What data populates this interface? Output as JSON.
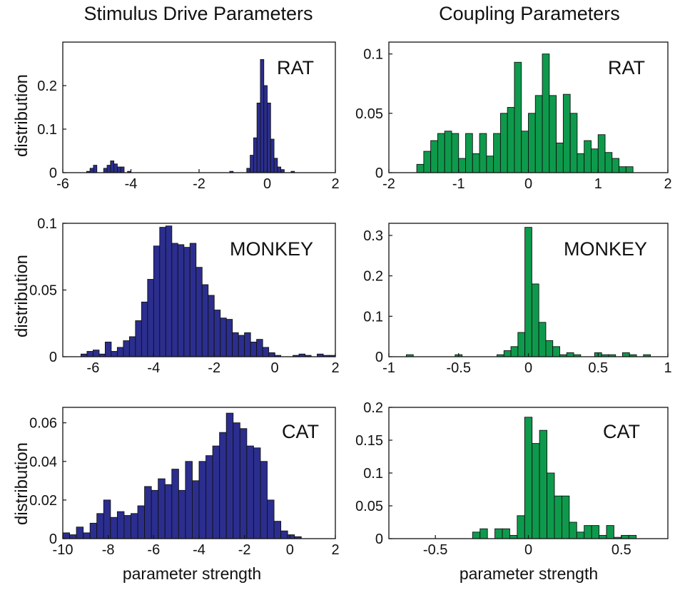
{
  "figure": {
    "column_titles": [
      "Stimulus Drive Parameters",
      "Coupling Parameters"
    ],
    "ylabel": "distribution",
    "xlabel": "parameter strength"
  },
  "colors": {
    "stimulus": "#2b2e8e",
    "coupling": "#0e9a4c"
  },
  "chart_data": [
    {
      "type": "bar",
      "name": "stimulus-rat",
      "label": "RAT",
      "color_key": "stimulus",
      "xlim": [
        -6,
        2
      ],
      "ylim": [
        0,
        0.3
      ],
      "xticks": [
        -6,
        -4,
        -2,
        0,
        2
      ],
      "xtick_labels": [
        "-6",
        "-4",
        "-2",
        "0",
        "2"
      ],
      "yticks": [
        0,
        0.1,
        0.2
      ],
      "ytick_labels": [
        "0",
        "0.1",
        "0.2"
      ],
      "bins": [
        [
          -5.3,
          -5.2,
          0.003
        ],
        [
          -5.2,
          -5.1,
          0.01
        ],
        [
          -5.1,
          -5.0,
          0.017
        ],
        [
          -4.8,
          -4.7,
          0.01
        ],
        [
          -4.7,
          -4.6,
          0.017
        ],
        [
          -4.6,
          -4.5,
          0.027
        ],
        [
          -4.5,
          -4.4,
          0.02
        ],
        [
          -4.4,
          -4.3,
          0.013
        ],
        [
          -4.3,
          -4.2,
          0.013
        ],
        [
          -4.1,
          -4.0,
          0.003
        ],
        [
          -1.1,
          -1.0,
          0.003
        ],
        [
          -0.6,
          -0.5,
          0.01
        ],
        [
          -0.5,
          -0.4,
          0.04
        ],
        [
          -0.4,
          -0.3,
          0.08
        ],
        [
          -0.3,
          -0.2,
          0.16
        ],
        [
          -0.2,
          -0.1,
          0.26
        ],
        [
          -0.1,
          0.0,
          0.2
        ],
        [
          0.0,
          0.1,
          0.16
        ],
        [
          0.1,
          0.2,
          0.077
        ],
        [
          0.2,
          0.3,
          0.033
        ],
        [
          0.3,
          0.4,
          0.013
        ],
        [
          0.4,
          0.5,
          0.007
        ],
        [
          0.7,
          0.8,
          0.003
        ]
      ]
    },
    {
      "type": "bar",
      "name": "coupling-rat",
      "label": "RAT",
      "color_key": "coupling",
      "xlim": [
        -2,
        2
      ],
      "ylim": [
        0,
        0.11
      ],
      "xticks": [
        -2,
        -1,
        0,
        1,
        2
      ],
      "xtick_labels": [
        "-2",
        "-1",
        "0",
        "1",
        "2"
      ],
      "yticks": [
        0,
        0.05,
        0.1
      ],
      "ytick_labels": [
        "0",
        "0.05",
        "0.1"
      ],
      "bin_start": -1.6,
      "bin_width": 0.1,
      "values": [
        0.007,
        0.018,
        0.027,
        0.033,
        0.035,
        0.033,
        0.012,
        0.033,
        0.016,
        0.033,
        0.014,
        0.033,
        0.05,
        0.055,
        0.093,
        0.035,
        0.05,
        0.065,
        0.1,
        0.065,
        0.025,
        0.066,
        0.05,
        0.016,
        0.027,
        0.02,
        0.032,
        0.017,
        0.012,
        0.005,
        0.005
      ]
    },
    {
      "type": "bar",
      "name": "stimulus-monkey",
      "label": "MONKEY",
      "color_key": "stimulus",
      "xlim": [
        -7,
        2
      ],
      "ylim": [
        0,
        0.1
      ],
      "xticks": [
        -6,
        -4,
        -2,
        0,
        2
      ],
      "xtick_labels": [
        "-6",
        "-4",
        "-2",
        "0",
        "2"
      ],
      "yticks": [
        0,
        0.05,
        0.1
      ],
      "ytick_labels": [
        "0",
        "0.05",
        "0.1"
      ],
      "bin_start": -6.4,
      "bin_width": 0.2,
      "values": [
        0.002,
        0.004,
        0.005,
        0.002,
        0.011,
        0.004,
        0.007,
        0.012,
        0.015,
        0.027,
        0.041,
        0.058,
        0.083,
        0.097,
        0.098,
        0.085,
        0.084,
        0.082,
        0.085,
        0.067,
        0.054,
        0.046,
        0.035,
        0.029,
        0.028,
        0.018,
        0.016,
        0.018,
        0.011,
        0.013,
        0.007,
        0.003,
        0.001,
        0,
        0,
        0.001,
        0.002,
        0.001,
        0,
        0,
        0.001,
        0.001
      ],
      "extra_bins": [
        [
          1.4,
          1.6,
          0.002
        ]
      ]
    },
    {
      "type": "bar",
      "name": "coupling-monkey",
      "label": "MONKEY",
      "color_key": "coupling",
      "xlim": [
        -1,
        1
      ],
      "ylim": [
        0,
        0.33
      ],
      "xticks": [
        -1,
        -0.5,
        0,
        0.5,
        1
      ],
      "xtick_labels": [
        "-1",
        "-0.5",
        "0",
        "0.5",
        "1"
      ],
      "yticks": [
        0,
        0.1,
        0.2,
        0.3
      ],
      "ytick_labels": [
        "0",
        "0.1",
        "0.2",
        "0.3"
      ],
      "bins": [
        [
          -0.875,
          -0.825,
          0.005
        ],
        [
          -0.525,
          -0.475,
          0.005
        ],
        [
          -0.225,
          -0.175,
          0.005
        ],
        [
          -0.175,
          -0.125,
          0.015
        ],
        [
          -0.125,
          -0.075,
          0.025
        ],
        [
          -0.075,
          -0.025,
          0.06
        ],
        [
          -0.025,
          0.025,
          0.32
        ],
        [
          0.025,
          0.075,
          0.18
        ],
        [
          0.075,
          0.125,
          0.085
        ],
        [
          0.125,
          0.175,
          0.04
        ],
        [
          0.175,
          0.225,
          0.025
        ],
        [
          0.225,
          0.275,
          0.005
        ],
        [
          0.275,
          0.325,
          0.01
        ],
        [
          0.325,
          0.375,
          0.005
        ],
        [
          0.475,
          0.525,
          0.01
        ],
        [
          0.525,
          0.575,
          0.005
        ],
        [
          0.575,
          0.625,
          0.005
        ],
        [
          0.675,
          0.725,
          0.01
        ],
        [
          0.725,
          0.775,
          0.005
        ],
        [
          0.825,
          0.875,
          0.005
        ]
      ]
    },
    {
      "type": "bar",
      "name": "stimulus-cat",
      "label": "CAT",
      "color_key": "stimulus",
      "xlim": [
        -10,
        2
      ],
      "ylim": [
        0,
        0.068
      ],
      "xticks": [
        -10,
        -8,
        -6,
        -4,
        -2,
        0,
        2
      ],
      "xtick_labels": [
        "-10",
        "-8",
        "-6",
        "-4",
        "-2",
        "0",
        "2"
      ],
      "yticks": [
        0,
        0.02,
        0.04,
        0.06
      ],
      "ytick_labels": [
        "0",
        "0.02",
        "0.04",
        "0.06"
      ],
      "bin_start": -10.0,
      "bin_width": 0.3,
      "values": [
        0.003,
        0.002,
        0.006,
        0.003,
        0.008,
        0.013,
        0.02,
        0.011,
        0.014,
        0.012,
        0.013,
        0.017,
        0.027,
        0.025,
        0.031,
        0.028,
        0.036,
        0.025,
        0.04,
        0.03,
        0.04,
        0.043,
        0.048,
        0.055,
        0.065,
        0.06,
        0.057,
        0.048,
        0.047,
        0.04,
        0.02,
        0.009,
        0.004,
        0.002,
        0.001
      ]
    },
    {
      "type": "bar",
      "name": "coupling-cat",
      "label": "CAT",
      "color_key": "coupling",
      "xlim": [
        -0.75,
        0.75
      ],
      "ylim": [
        0,
        0.2
      ],
      "xticks": [
        -0.5,
        0,
        0.5
      ],
      "xtick_labels": [
        "-0.5",
        "0",
        "0.5"
      ],
      "yticks": [
        0,
        0.05,
        0.1,
        0.15,
        0.2
      ],
      "ytick_labels": [
        "0",
        "0.05",
        "0.1",
        "0.15",
        "0.2"
      ],
      "bins": [
        [
          -0.3,
          -0.26,
          0.01
        ],
        [
          -0.26,
          -0.22,
          0.015
        ],
        [
          -0.18,
          -0.14,
          0.015
        ],
        [
          -0.14,
          -0.1,
          0.015
        ],
        [
          -0.1,
          -0.06,
          0.005
        ],
        [
          -0.06,
          -0.02,
          0.035
        ],
        [
          -0.02,
          0.02,
          0.185
        ],
        [
          0.02,
          0.06,
          0.145
        ],
        [
          0.06,
          0.1,
          0.165
        ],
        [
          0.1,
          0.14,
          0.1
        ],
        [
          0.14,
          0.18,
          0.065
        ],
        [
          0.18,
          0.22,
          0.065
        ],
        [
          0.22,
          0.26,
          0.025
        ],
        [
          0.26,
          0.3,
          0.01
        ],
        [
          0.3,
          0.34,
          0.02
        ],
        [
          0.34,
          0.38,
          0.02
        ],
        [
          0.38,
          0.42,
          0.005
        ],
        [
          0.42,
          0.46,
          0.02
        ],
        [
          0.46,
          0.5,
          0.002
        ],
        [
          0.5,
          0.54,
          0.005
        ],
        [
          0.54,
          0.58,
          0.005
        ]
      ]
    }
  ]
}
